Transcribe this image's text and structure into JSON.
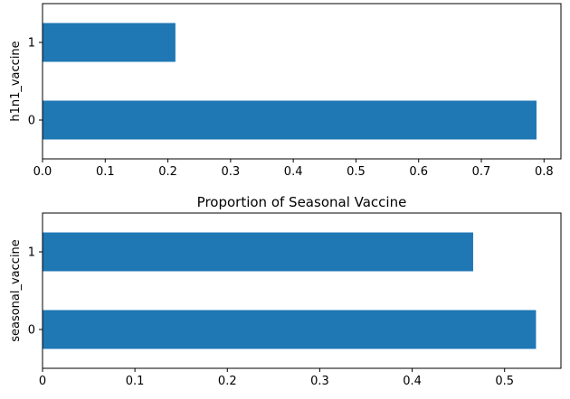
{
  "chart_data": [
    {
      "type": "bar",
      "orientation": "horizontal",
      "title": "",
      "categories": [
        "0",
        "1"
      ],
      "values": [
        0.788,
        0.212
      ],
      "ylabel": "h1n1_vaccine",
      "xlabel": "",
      "xlim": [
        0,
        0.827
      ],
      "xticks": [
        0.0,
        0.1,
        0.2,
        0.3,
        0.4,
        0.5,
        0.6,
        0.7,
        0.8
      ],
      "xtick_labels": [
        "0.0",
        "0.1",
        "0.2",
        "0.3",
        "0.4",
        "0.5",
        "0.6",
        "0.7",
        "0.8"
      ],
      "color": "#1f77b4",
      "grid": false,
      "legend": "none"
    },
    {
      "type": "bar",
      "orientation": "horizontal",
      "title": "Proportion of Seasonal Vaccine",
      "categories": [
        "0",
        "1"
      ],
      "values": [
        0.534,
        0.466
      ],
      "ylabel": "seasonal_vaccine",
      "xlabel": "",
      "xlim": [
        0,
        0.561
      ],
      "xticks": [
        0,
        0.1,
        0.2,
        0.3,
        0.4,
        0.5
      ],
      "xtick_labels": [
        "0",
        "0.1",
        "0.2",
        "0.3",
        "0.4",
        "0.5"
      ],
      "color": "#1f77b4",
      "grid": false,
      "legend": "none"
    }
  ]
}
